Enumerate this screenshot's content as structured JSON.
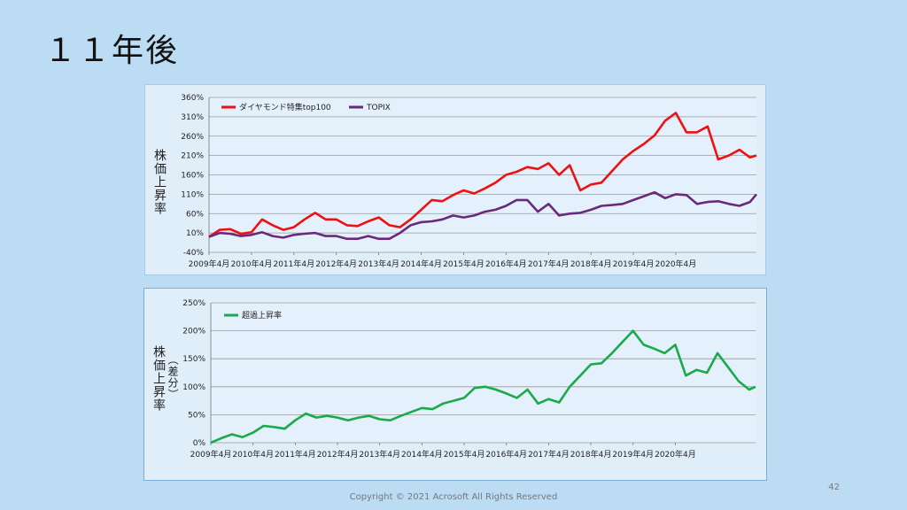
{
  "slide": {
    "title": "１１年後",
    "page_number": "42",
    "copyright": "Copyright © 2021  Acrosoft All Rights Reserved"
  },
  "colors": {
    "background": "#bcdcf4",
    "chart_background": "#e0eefa",
    "diamond": "#ee1111",
    "topix": "#6a2a7a",
    "excess": "#1aaa4a"
  },
  "chart_data": [
    {
      "type": "line",
      "ylabel": "株価上昇率",
      "y_ticks": [
        "-40%",
        "10%",
        "60%",
        "110%",
        "160%",
        "210%",
        "260%",
        "310%",
        "360%"
      ],
      "ylim": [
        -40,
        360
      ],
      "x_ticks": [
        "2009年4月",
        "2010年4月",
        "2011年4月",
        "2012年4月",
        "2013年4月",
        "2014年4月",
        "2015年4月",
        "2016年4月",
        "2017年4月",
        "2018年4月",
        "2019年4月",
        "2020年4月"
      ],
      "xlim": [
        0,
        12.9
      ],
      "grid": true,
      "legend": "top-left",
      "series": [
        {
          "name": "ダイヤモンド特集top100",
          "color": "#ee1111",
          "x": [
            0,
            0.25,
            0.5,
            0.75,
            1,
            1.25,
            1.5,
            1.75,
            2,
            2.25,
            2.5,
            2.75,
            3,
            3.25,
            3.5,
            3.75,
            4,
            4.25,
            4.5,
            4.75,
            5,
            5.25,
            5.5,
            5.75,
            6,
            6.25,
            6.5,
            6.75,
            7,
            7.25,
            7.5,
            7.75,
            8,
            8.25,
            8.5,
            8.75,
            9,
            9.25,
            9.5,
            9.75,
            10,
            10.25,
            10.5,
            10.75,
            11,
            11.25,
            11.5,
            11.75,
            12,
            12.25,
            12.5,
            12.75,
            12.9
          ],
          "y": [
            0,
            18,
            20,
            8,
            12,
            45,
            30,
            18,
            25,
            45,
            62,
            45,
            45,
            30,
            28,
            40,
            50,
            30,
            25,
            45,
            70,
            95,
            92,
            108,
            120,
            112,
            125,
            140,
            160,
            168,
            180,
            175,
            190,
            160,
            185,
            120,
            135,
            140,
            170,
            200,
            222,
            240,
            262,
            300,
            320,
            270,
            270,
            285,
            200,
            210,
            225,
            205,
            210
          ]
        },
        {
          "name": "TOPIX",
          "color": "#6a2a7a",
          "x": [
            0,
            0.25,
            0.5,
            0.75,
            1,
            1.25,
            1.5,
            1.75,
            2,
            2.25,
            2.5,
            2.75,
            3,
            3.25,
            3.5,
            3.75,
            4,
            4.25,
            4.5,
            4.75,
            5,
            5.25,
            5.5,
            5.75,
            6,
            6.25,
            6.5,
            6.75,
            7,
            7.25,
            7.5,
            7.75,
            8,
            8.25,
            8.5,
            8.75,
            9,
            9.25,
            9.5,
            9.75,
            10,
            10.25,
            10.5,
            10.75,
            11,
            11.25,
            11.5,
            11.75,
            12,
            12.25,
            12.5,
            12.75,
            12.9
          ],
          "y": [
            0,
            10,
            8,
            2,
            5,
            12,
            2,
            -2,
            5,
            8,
            10,
            2,
            2,
            -5,
            -5,
            2,
            -5,
            -5,
            10,
            30,
            38,
            40,
            45,
            55,
            50,
            55,
            65,
            70,
            80,
            95,
            95,
            65,
            85,
            55,
            60,
            62,
            70,
            80,
            82,
            85,
            95,
            105,
            115,
            100,
            110,
            108,
            85,
            90,
            92,
            85,
            80,
            90,
            110
          ]
        }
      ]
    },
    {
      "type": "line",
      "ylabel": "株価上昇率",
      "ylabel2": "（差分）",
      "y_ticks": [
        "0%",
        "50%",
        "100%",
        "150%",
        "200%",
        "250%"
      ],
      "ylim": [
        0,
        250
      ],
      "x_ticks": [
        "2009年4月",
        "2010年4月",
        "2011年4月",
        "2012年4月",
        "2013年4月",
        "2014年4月",
        "2015年4月",
        "2016年4月",
        "2017年4月",
        "2018年4月",
        "2019年4月",
        "2020年4月"
      ],
      "xlim": [
        0,
        12.9
      ],
      "grid": true,
      "legend": "top-left",
      "series": [
        {
          "name": "超過上昇率",
          "color": "#1aaa4a",
          "x": [
            0,
            0.25,
            0.5,
            0.75,
            1,
            1.25,
            1.5,
            1.75,
            2,
            2.25,
            2.5,
            2.75,
            3,
            3.25,
            3.5,
            3.75,
            4,
            4.25,
            4.5,
            4.75,
            5,
            5.25,
            5.5,
            5.75,
            6,
            6.25,
            6.5,
            6.75,
            7,
            7.25,
            7.5,
            7.75,
            8,
            8.25,
            8.5,
            8.75,
            9,
            9.25,
            9.5,
            9.75,
            10,
            10.25,
            10.5,
            10.75,
            11,
            11.25,
            11.5,
            11.75,
            12,
            12.25,
            12.5,
            12.75,
            12.9
          ],
          "y": [
            0,
            8,
            15,
            10,
            18,
            30,
            28,
            25,
            40,
            52,
            45,
            48,
            45,
            40,
            45,
            48,
            42,
            40,
            48,
            55,
            62,
            60,
            70,
            75,
            80,
            98,
            100,
            95,
            88,
            80,
            95,
            70,
            78,
            72,
            100,
            120,
            140,
            142,
            160,
            180,
            200,
            175,
            168,
            160,
            175,
            120,
            130,
            125,
            160,
            135,
            110,
            95,
            100
          ]
        }
      ]
    }
  ]
}
